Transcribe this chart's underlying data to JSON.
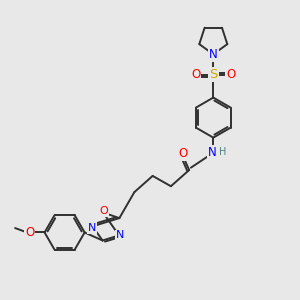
{
  "bg_color": "#e8e8e8",
  "atom_colors": {
    "C": "#303030",
    "N": "#0000ff",
    "O": "#ff0000",
    "S": "#ccaa00",
    "H": "#508080"
  },
  "bond_color": "#303030",
  "bond_width": 1.4,
  "font_size_atom": 8.5,
  "fig_size": [
    3.0,
    3.0
  ],
  "dpi": 100,
  "xlim": [
    0,
    10
  ],
  "ylim": [
    0,
    10
  ]
}
